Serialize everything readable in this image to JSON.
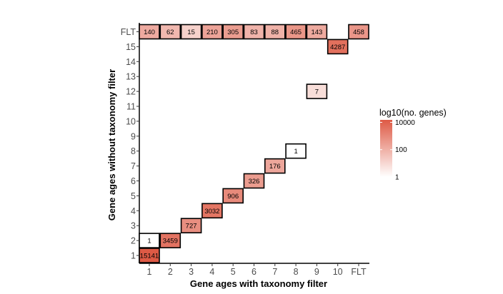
{
  "chart_data": {
    "type": "heatmap",
    "xlabel": "Gene ages with taxonomy filter",
    "ylabel": "Gene ages without taxonomy filter",
    "x_categories": [
      "1",
      "2",
      "3",
      "4",
      "5",
      "6",
      "7",
      "8",
      "9",
      "10",
      "FLT"
    ],
    "y_categories": [
      "1",
      "2",
      "3",
      "4",
      "5",
      "6",
      "7",
      "8",
      "9",
      "10",
      "11",
      "12",
      "13",
      "14",
      "15",
      "FLT"
    ],
    "cells": [
      {
        "x": "1",
        "y": "1",
        "value": 15141
      },
      {
        "x": "1",
        "y": "2",
        "value": 1
      },
      {
        "x": "2",
        "y": "2",
        "value": 3459
      },
      {
        "x": "3",
        "y": "3",
        "value": 727
      },
      {
        "x": "4",
        "y": "4",
        "value": 3032
      },
      {
        "x": "5",
        "y": "5",
        "value": 906
      },
      {
        "x": "6",
        "y": "6",
        "value": 326
      },
      {
        "x": "7",
        "y": "7",
        "value": 176
      },
      {
        "x": "8",
        "y": "8",
        "value": 1
      },
      {
        "x": "9",
        "y": "12",
        "value": 7
      },
      {
        "x": "10",
        "y": "15",
        "value": 4287
      },
      {
        "x": "1",
        "y": "FLT",
        "value": 140
      },
      {
        "x": "2",
        "y": "FLT",
        "value": 62
      },
      {
        "x": "3",
        "y": "FLT",
        "value": 15
      },
      {
        "x": "4",
        "y": "FLT",
        "value": 210
      },
      {
        "x": "5",
        "y": "FLT",
        "value": 305
      },
      {
        "x": "6",
        "y": "FLT",
        "value": 83
      },
      {
        "x": "7",
        "y": "FLT",
        "value": 88
      },
      {
        "x": "8",
        "y": "FLT",
        "value": 465
      },
      {
        "x": "9",
        "y": "FLT",
        "value": 143
      },
      {
        "x": "FLT",
        "y": "FLT",
        "value": 458
      }
    ],
    "color_scale": {
      "type": "log10",
      "low_color": "#ffffff",
      "high_color": "#de5a45",
      "domain": [
        1,
        15141
      ]
    },
    "legend": {
      "title": "log10(no. genes)",
      "ticks": [
        {
          "value": 10000,
          "label": "10000"
        },
        {
          "value": 100,
          "label": "100"
        },
        {
          "value": 1,
          "label": "1"
        }
      ],
      "placement": "right"
    },
    "grid": false
  }
}
